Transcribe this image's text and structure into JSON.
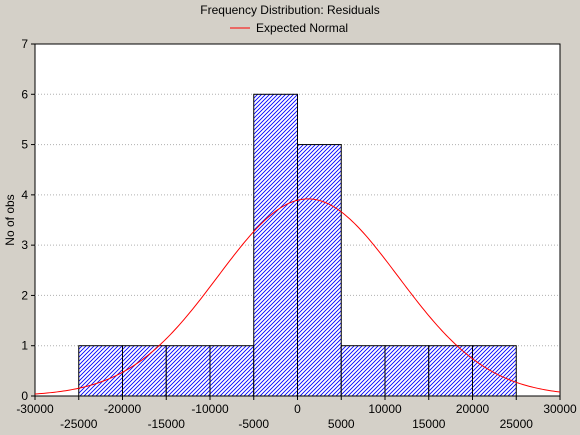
{
  "chart_data": {
    "type": "bar",
    "title": "Frequency Distribution: Residuals",
    "legend": {
      "placement": "top-center",
      "entries": [
        {
          "label": "Expected Normal",
          "color": "#ff0000"
        }
      ]
    },
    "xlabel": "",
    "ylabel": "No of obs",
    "xlim": [
      -30000,
      30000
    ],
    "ylim": [
      0,
      7
    ],
    "grid": true,
    "bin_width": 5000,
    "bins": [
      {
        "start": -25000,
        "end": -20000,
        "count": 1
      },
      {
        "start": -20000,
        "end": -15000,
        "count": 1
      },
      {
        "start": -15000,
        "end": -10000,
        "count": 1
      },
      {
        "start": -10000,
        "end": -5000,
        "count": 1
      },
      {
        "start": -5000,
        "end": 0,
        "count": 6
      },
      {
        "start": 0,
        "end": 5000,
        "count": 5
      },
      {
        "start": 5000,
        "end": 10000,
        "count": 1
      },
      {
        "start": 10000,
        "end": 15000,
        "count": 1
      },
      {
        "start": 15000,
        "end": 20000,
        "count": 1
      },
      {
        "start": 20000,
        "end": 25000,
        "count": 1
      }
    ],
    "expected_normal": {
      "mean": 1200,
      "peak": 3.92,
      "sd": 10300
    },
    "x_ticks_upper": [
      "-30000",
      "-20000",
      "-10000",
      "0",
      "10000",
      "20000",
      "30000"
    ],
    "x_ticks_lower": [
      "-25000",
      "-15000",
      "-5000",
      "5000",
      "15000",
      "25000"
    ],
    "y_ticks": [
      "0",
      "1",
      "2",
      "3",
      "4",
      "5",
      "6",
      "7"
    ],
    "colors": {
      "bar_fill": "#ffffff",
      "bar_hatch": "#0000ff",
      "bar_edge": "#000000",
      "curve": "#ff0000",
      "plot_bg": "#ffffff",
      "page_bg": "#d4d0c8"
    }
  }
}
